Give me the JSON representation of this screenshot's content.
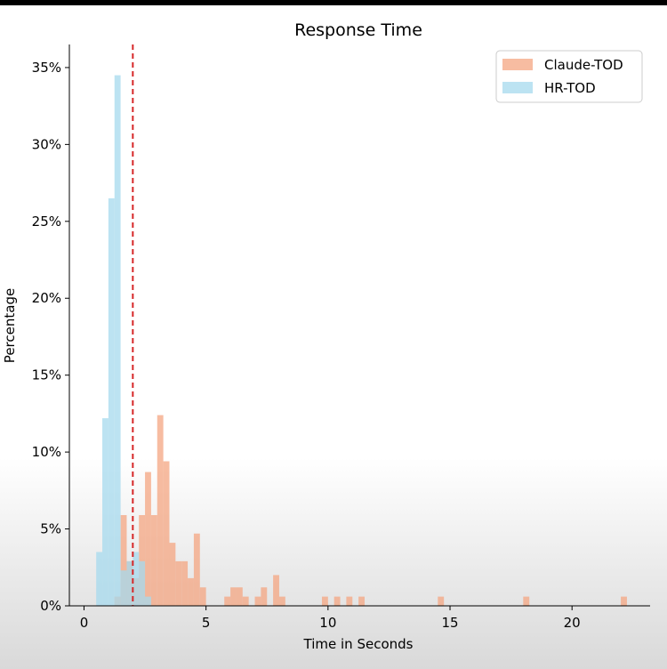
{
  "chart_data": {
    "type": "histogram",
    "title": "Response Time",
    "xlabel": "Time in Seconds",
    "ylabel": "Percentage",
    "xlim": [
      -0.6,
      23.2
    ],
    "ylim": [
      0,
      36.5
    ],
    "x_ticks": [
      0,
      5,
      10,
      15,
      20
    ],
    "x_tick_labels": [
      "0",
      "5",
      "10",
      "15",
      "20"
    ],
    "y_ticks": [
      0,
      5,
      10,
      15,
      20,
      25,
      30,
      35
    ],
    "y_tick_labels": [
      "0%",
      "5%",
      "10%",
      "15%",
      "20%",
      "25%",
      "30%",
      "35%"
    ],
    "bin_width": 0.25,
    "reference_line": {
      "x": 2.0,
      "style": "dashed",
      "color": "#d62728"
    },
    "legend": {
      "placement": "top-right"
    },
    "series": [
      {
        "name": "Claude-TOD",
        "color": "#f4a582",
        "bins": [
          [
            1.25,
            0.6
          ],
          [
            1.5,
            5.9
          ],
          [
            1.75,
            2.9
          ],
          [
            2.0,
            1.8
          ],
          [
            2.25,
            5.9
          ],
          [
            2.5,
            8.7
          ],
          [
            2.75,
            5.9
          ],
          [
            3.0,
            12.4
          ],
          [
            3.25,
            9.4
          ],
          [
            3.5,
            4.1
          ],
          [
            3.75,
            2.9
          ],
          [
            4.0,
            2.9
          ],
          [
            4.25,
            1.8
          ],
          [
            4.5,
            4.7
          ],
          [
            4.75,
            1.2
          ],
          [
            5.75,
            0.6
          ],
          [
            6.0,
            1.2
          ],
          [
            6.25,
            1.2
          ],
          [
            6.5,
            0.6
          ],
          [
            7.0,
            0.6
          ],
          [
            7.25,
            1.2
          ],
          [
            7.75,
            2.0
          ],
          [
            8.0,
            0.6
          ],
          [
            9.75,
            0.6
          ],
          [
            10.25,
            0.6
          ],
          [
            10.75,
            0.6
          ],
          [
            11.25,
            0.6
          ],
          [
            14.5,
            0.6
          ],
          [
            18.0,
            0.6
          ],
          [
            22.0,
            0.6
          ]
        ]
      },
      {
        "name": "HR-TOD",
        "color": "#a6d9ee",
        "bins": [
          [
            0.5,
            3.5
          ],
          [
            0.75,
            12.2
          ],
          [
            1.0,
            26.5
          ],
          [
            1.25,
            34.5
          ],
          [
            1.5,
            2.3
          ],
          [
            1.75,
            2.9
          ],
          [
            2.0,
            3.5
          ],
          [
            2.25,
            2.9
          ],
          [
            2.5,
            0.6
          ]
        ]
      }
    ]
  }
}
